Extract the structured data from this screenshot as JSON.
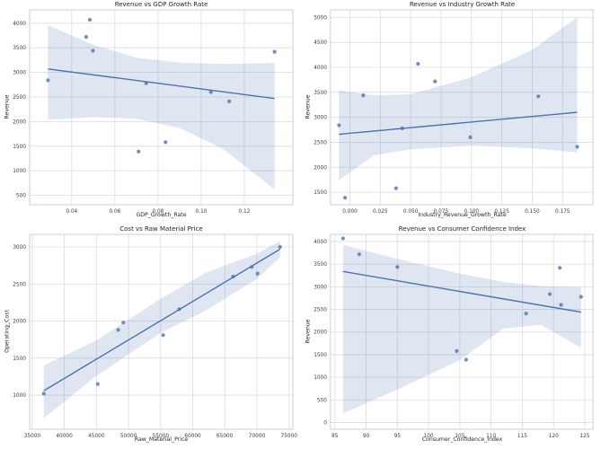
{
  "figure": {
    "background": "#ffffff",
    "accent_color": "#4c72b0",
    "band_opacity": 0.18,
    "grid_color": "#d9dce4",
    "spine_color": "#cbcfd8",
    "text_color": "#262626"
  },
  "chart_data": [
    {
      "type": "scatter",
      "title": "Revenue vs GDP Growth Rate",
      "xlabel": "GDP_Growth_Rate",
      "ylabel": "Revenue",
      "xlim": [
        0.0205,
        0.1425
      ],
      "ylim": [
        310,
        4270
      ],
      "xticks": [
        0.04,
        0.06,
        0.08,
        0.1,
        0.12
      ],
      "xtick_labels": [
        "0.04",
        "0.06",
        "0.08",
        "0.10",
        "0.12"
      ],
      "yticks": [
        500,
        1000,
        1500,
        2000,
        2500,
        3000,
        3500,
        4000
      ],
      "ytick_labels": [
        "500",
        "1000",
        "1500",
        "2000",
        "2500",
        "3000",
        "3500",
        "4000"
      ],
      "grid": true,
      "legend": "none",
      "points": [
        [
          0.029,
          2840
        ],
        [
          0.0467,
          3720
        ],
        [
          0.0484,
          4070
        ],
        [
          0.0498,
          3440
        ],
        [
          0.071,
          1390
        ],
        [
          0.0745,
          2780
        ],
        [
          0.0835,
          1580
        ],
        [
          0.1045,
          2600
        ],
        [
          0.113,
          2410
        ],
        [
          0.134,
          3420
        ]
      ],
      "regression_line": {
        "x1": 0.029,
        "y1": 3070,
        "x2": 0.134,
        "y2": 2470
      },
      "confidence_band": {
        "x": [
          0.029,
          0.05,
          0.07,
          0.09,
          0.11,
          0.134
        ],
        "upper": [
          3960,
          3560,
          3300,
          3200,
          3170,
          3190
        ],
        "lower": [
          2040,
          2090,
          2060,
          1870,
          1450,
          620
        ]
      }
    },
    {
      "type": "scatter",
      "title": "Revenue vs Industry Growth Rate",
      "xlabel": "Industry_Revenue_Growth_Rate",
      "ylabel": "Revenue",
      "xlim": [
        -0.016,
        0.2
      ],
      "ylim": [
        1250,
        5150
      ],
      "xticks": [
        0.0,
        0.025,
        0.05,
        0.075,
        0.1,
        0.125,
        0.15,
        0.175
      ],
      "xtick_labels": [
        "0.000",
        "0.025",
        "0.050",
        "0.075",
        "0.100",
        "0.125",
        "0.150",
        "0.175"
      ],
      "yticks": [
        1500,
        2000,
        2500,
        3000,
        3500,
        4000,
        4500,
        5000
      ],
      "ytick_labels": [
        "1500",
        "2000",
        "2500",
        "3000",
        "3500",
        "4000",
        "4500",
        "5000"
      ],
      "grid": true,
      "legend": "none",
      "points": [
        [
          -0.009,
          2840
        ],
        [
          -0.004,
          1390
        ],
        [
          0.011,
          3440
        ],
        [
          0.038,
          1580
        ],
        [
          0.043,
          2780
        ],
        [
          0.056,
          4070
        ],
        [
          0.07,
          3720
        ],
        [
          0.099,
          2600
        ],
        [
          0.155,
          3420
        ],
        [
          0.187,
          2410
        ]
      ],
      "regression_line": {
        "x1": -0.009,
        "y1": 2660,
        "x2": 0.187,
        "y2": 3100
      },
      "confidence_band": {
        "x": [
          -0.009,
          0.02,
          0.05,
          0.1,
          0.15,
          0.187
        ],
        "upper": [
          3540,
          3440,
          3460,
          3800,
          4350,
          5000
        ],
        "lower": [
          1740,
          2240,
          2360,
          2430,
          2380,
          2300
        ]
      }
    },
    {
      "type": "scatter",
      "title": "Cost vs Raw Material Price",
      "xlabel": "Raw_Material_Price",
      "ylabel": "Operating_Cost",
      "xlim": [
        34600,
        75600
      ],
      "ylim": [
        540,
        3170
      ],
      "xticks": [
        35000,
        40000,
        45000,
        50000,
        55000,
        60000,
        65000,
        70000,
        75000
      ],
      "xtick_labels": [
        "35000",
        "40000",
        "45000",
        "50000",
        "55000",
        "60000",
        "65000",
        "70000",
        "75000"
      ],
      "yticks": [
        1000,
        1500,
        2000,
        2500,
        3000
      ],
      "ytick_labels": [
        "1000",
        "1500",
        "2000",
        "2500",
        "3000"
      ],
      "grid": true,
      "legend": "none",
      "points": [
        [
          36800,
          1020
        ],
        [
          45200,
          1150
        ],
        [
          48400,
          1880
        ],
        [
          49200,
          1980
        ],
        [
          55400,
          1810
        ],
        [
          57900,
          2160
        ],
        [
          66300,
          2600
        ],
        [
          69200,
          2730
        ],
        [
          70100,
          2640
        ],
        [
          73600,
          3000
        ]
      ],
      "regression_line": {
        "x1": 36800,
        "y1": 1060,
        "x2": 73600,
        "y2": 2970
      },
      "confidence_band": {
        "x": [
          36800,
          45000,
          55000,
          62000,
          70000,
          73600
        ],
        "upper": [
          1400,
          1740,
          2300,
          2650,
          2910,
          3080
        ],
        "lower": [
          690,
          1260,
          1840,
          2140,
          2570,
          2860
        ]
      }
    },
    {
      "type": "scatter",
      "title": "Revenue vs Consumer Confidence Index",
      "xlabel": "Consumer_Confidence_Index",
      "ylabel": "Revenue",
      "xlim": [
        84.3,
        126.3
      ],
      "ylim": [
        -150,
        4160
      ],
      "xticks": [
        85,
        90,
        95,
        100,
        105,
        110,
        115,
        120,
        125
      ],
      "xtick_labels": [
        "85",
        "90",
        "95",
        "100",
        "105",
        "110",
        "115",
        "120",
        "125"
      ],
      "yticks": [
        0,
        500,
        1000,
        1500,
        2000,
        2500,
        3000,
        3500,
        4000
      ],
      "ytick_labels": [
        "0",
        "500",
        "1000",
        "1500",
        "2000",
        "2500",
        "3000",
        "3500",
        "4000"
      ],
      "grid": true,
      "legend": "none",
      "points": [
        [
          86.3,
          4070
        ],
        [
          88.9,
          3720
        ],
        [
          95.0,
          3440
        ],
        [
          104.5,
          1580
        ],
        [
          106.0,
          1390
        ],
        [
          115.6,
          2410
        ],
        [
          119.4,
          2840
        ],
        [
          121.0,
          3420
        ],
        [
          121.2,
          2600
        ],
        [
          124.4,
          2780
        ]
      ],
      "regression_line": {
        "x1": 86.3,
        "y1": 3340,
        "x2": 124.4,
        "y2": 2440
      },
      "confidence_band": {
        "x": [
          86.3,
          95,
          105,
          112,
          118,
          124.4
        ],
        "upper": [
          3930,
          3620,
          3290,
          3110,
          3010,
          2990
        ],
        "lower": [
          200,
          730,
          1380,
          2080,
          2160,
          1650
        ]
      }
    }
  ]
}
